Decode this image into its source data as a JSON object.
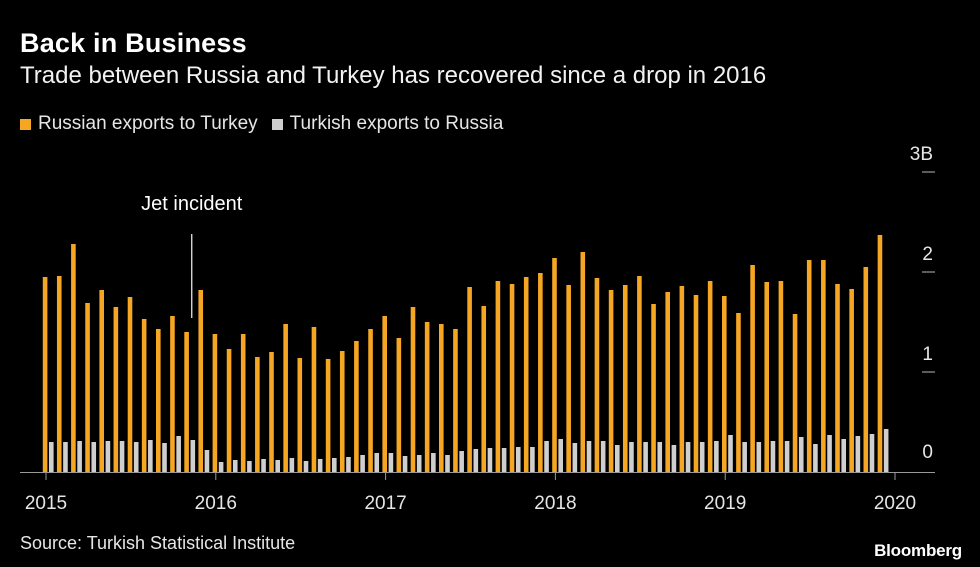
{
  "title": "Back in Business",
  "subtitle": "Trade between Russia and Turkey has recovered since a drop in 2016",
  "source": "Source: Turkish Statistical Institute",
  "brand": "Bloomberg",
  "colors": {
    "background": "#000000",
    "series1": "#f5a623",
    "series2": "#cfcfcf",
    "axis": "#9a9a9a"
  },
  "chart_data": {
    "type": "bar",
    "title": "Back in Business",
    "subtitle": "Trade between Russia and Turkey has recovered since a drop in 2016",
    "xlabel": "",
    "ylabel": "",
    "ylim": [
      0,
      3
    ],
    "y_ticks": [
      {
        "value": 0,
        "label": "0"
      },
      {
        "value": 1,
        "label": "1"
      },
      {
        "value": 2,
        "label": "2"
      },
      {
        "value": 3,
        "label": "3B"
      }
    ],
    "x_ticks": [
      {
        "month_index": 0,
        "label": "2015"
      },
      {
        "month_index": 12,
        "label": "2016"
      },
      {
        "month_index": 24,
        "label": "2017"
      },
      {
        "month_index": 36,
        "label": "2018"
      },
      {
        "month_index": 48,
        "label": "2019"
      },
      {
        "month_index": 60,
        "label": "2020"
      }
    ],
    "categories": [
      "2015-01",
      "2015-02",
      "2015-03",
      "2015-04",
      "2015-05",
      "2015-06",
      "2015-07",
      "2015-08",
      "2015-09",
      "2015-10",
      "2015-11",
      "2015-12",
      "2016-01",
      "2016-02",
      "2016-03",
      "2016-04",
      "2016-05",
      "2016-06",
      "2016-07",
      "2016-08",
      "2016-09",
      "2016-10",
      "2016-11",
      "2016-12",
      "2017-01",
      "2017-02",
      "2017-03",
      "2017-04",
      "2017-05",
      "2017-06",
      "2017-07",
      "2017-08",
      "2017-09",
      "2017-10",
      "2017-11",
      "2017-12",
      "2018-01",
      "2018-02",
      "2018-03",
      "2018-04",
      "2018-05",
      "2018-06",
      "2018-07",
      "2018-08",
      "2018-09",
      "2018-10",
      "2018-11",
      "2018-12",
      "2019-01",
      "2019-02",
      "2019-03",
      "2019-04",
      "2019-05",
      "2019-06",
      "2019-07",
      "2019-08",
      "2019-09",
      "2019-10",
      "2019-11",
      "2019-12"
    ],
    "series": [
      {
        "name": "Russian exports to Turkey",
        "values": [
          1.95,
          1.96,
          2.28,
          1.69,
          1.82,
          1.65,
          1.75,
          1.53,
          1.43,
          1.56,
          1.4,
          1.82,
          1.38,
          1.23,
          1.38,
          1.15,
          1.2,
          1.48,
          1.14,
          1.45,
          1.13,
          1.21,
          1.31,
          1.43,
          1.56,
          1.34,
          1.65,
          1.5,
          1.48,
          1.43,
          1.85,
          1.66,
          1.91,
          1.88,
          1.95,
          1.99,
          2.14,
          1.87,
          2.2,
          1.94,
          1.82,
          1.87,
          1.96,
          1.68,
          1.8,
          1.86,
          1.77,
          1.91,
          1.76,
          1.59,
          2.07,
          1.9,
          1.91,
          1.58,
          2.12,
          2.12,
          1.88,
          1.83,
          2.05,
          2.37
        ]
      },
      {
        "name": "Turkish exports to Russia",
        "values": [
          0.3,
          0.3,
          0.31,
          0.3,
          0.31,
          0.31,
          0.3,
          0.32,
          0.29,
          0.36,
          0.32,
          0.22,
          0.1,
          0.12,
          0.11,
          0.13,
          0.12,
          0.14,
          0.11,
          0.13,
          0.14,
          0.15,
          0.17,
          0.19,
          0.19,
          0.16,
          0.17,
          0.19,
          0.17,
          0.21,
          0.23,
          0.24,
          0.24,
          0.25,
          0.25,
          0.31,
          0.33,
          0.29,
          0.31,
          0.31,
          0.27,
          0.3,
          0.3,
          0.3,
          0.27,
          0.3,
          0.3,
          0.31,
          0.37,
          0.3,
          0.3,
          0.31,
          0.31,
          0.35,
          0.28,
          0.37,
          0.33,
          0.36,
          0.38,
          0.43
        ]
      }
    ],
    "annotations": [
      {
        "text": "Jet incident",
        "month_index": 10.3
      }
    ]
  }
}
